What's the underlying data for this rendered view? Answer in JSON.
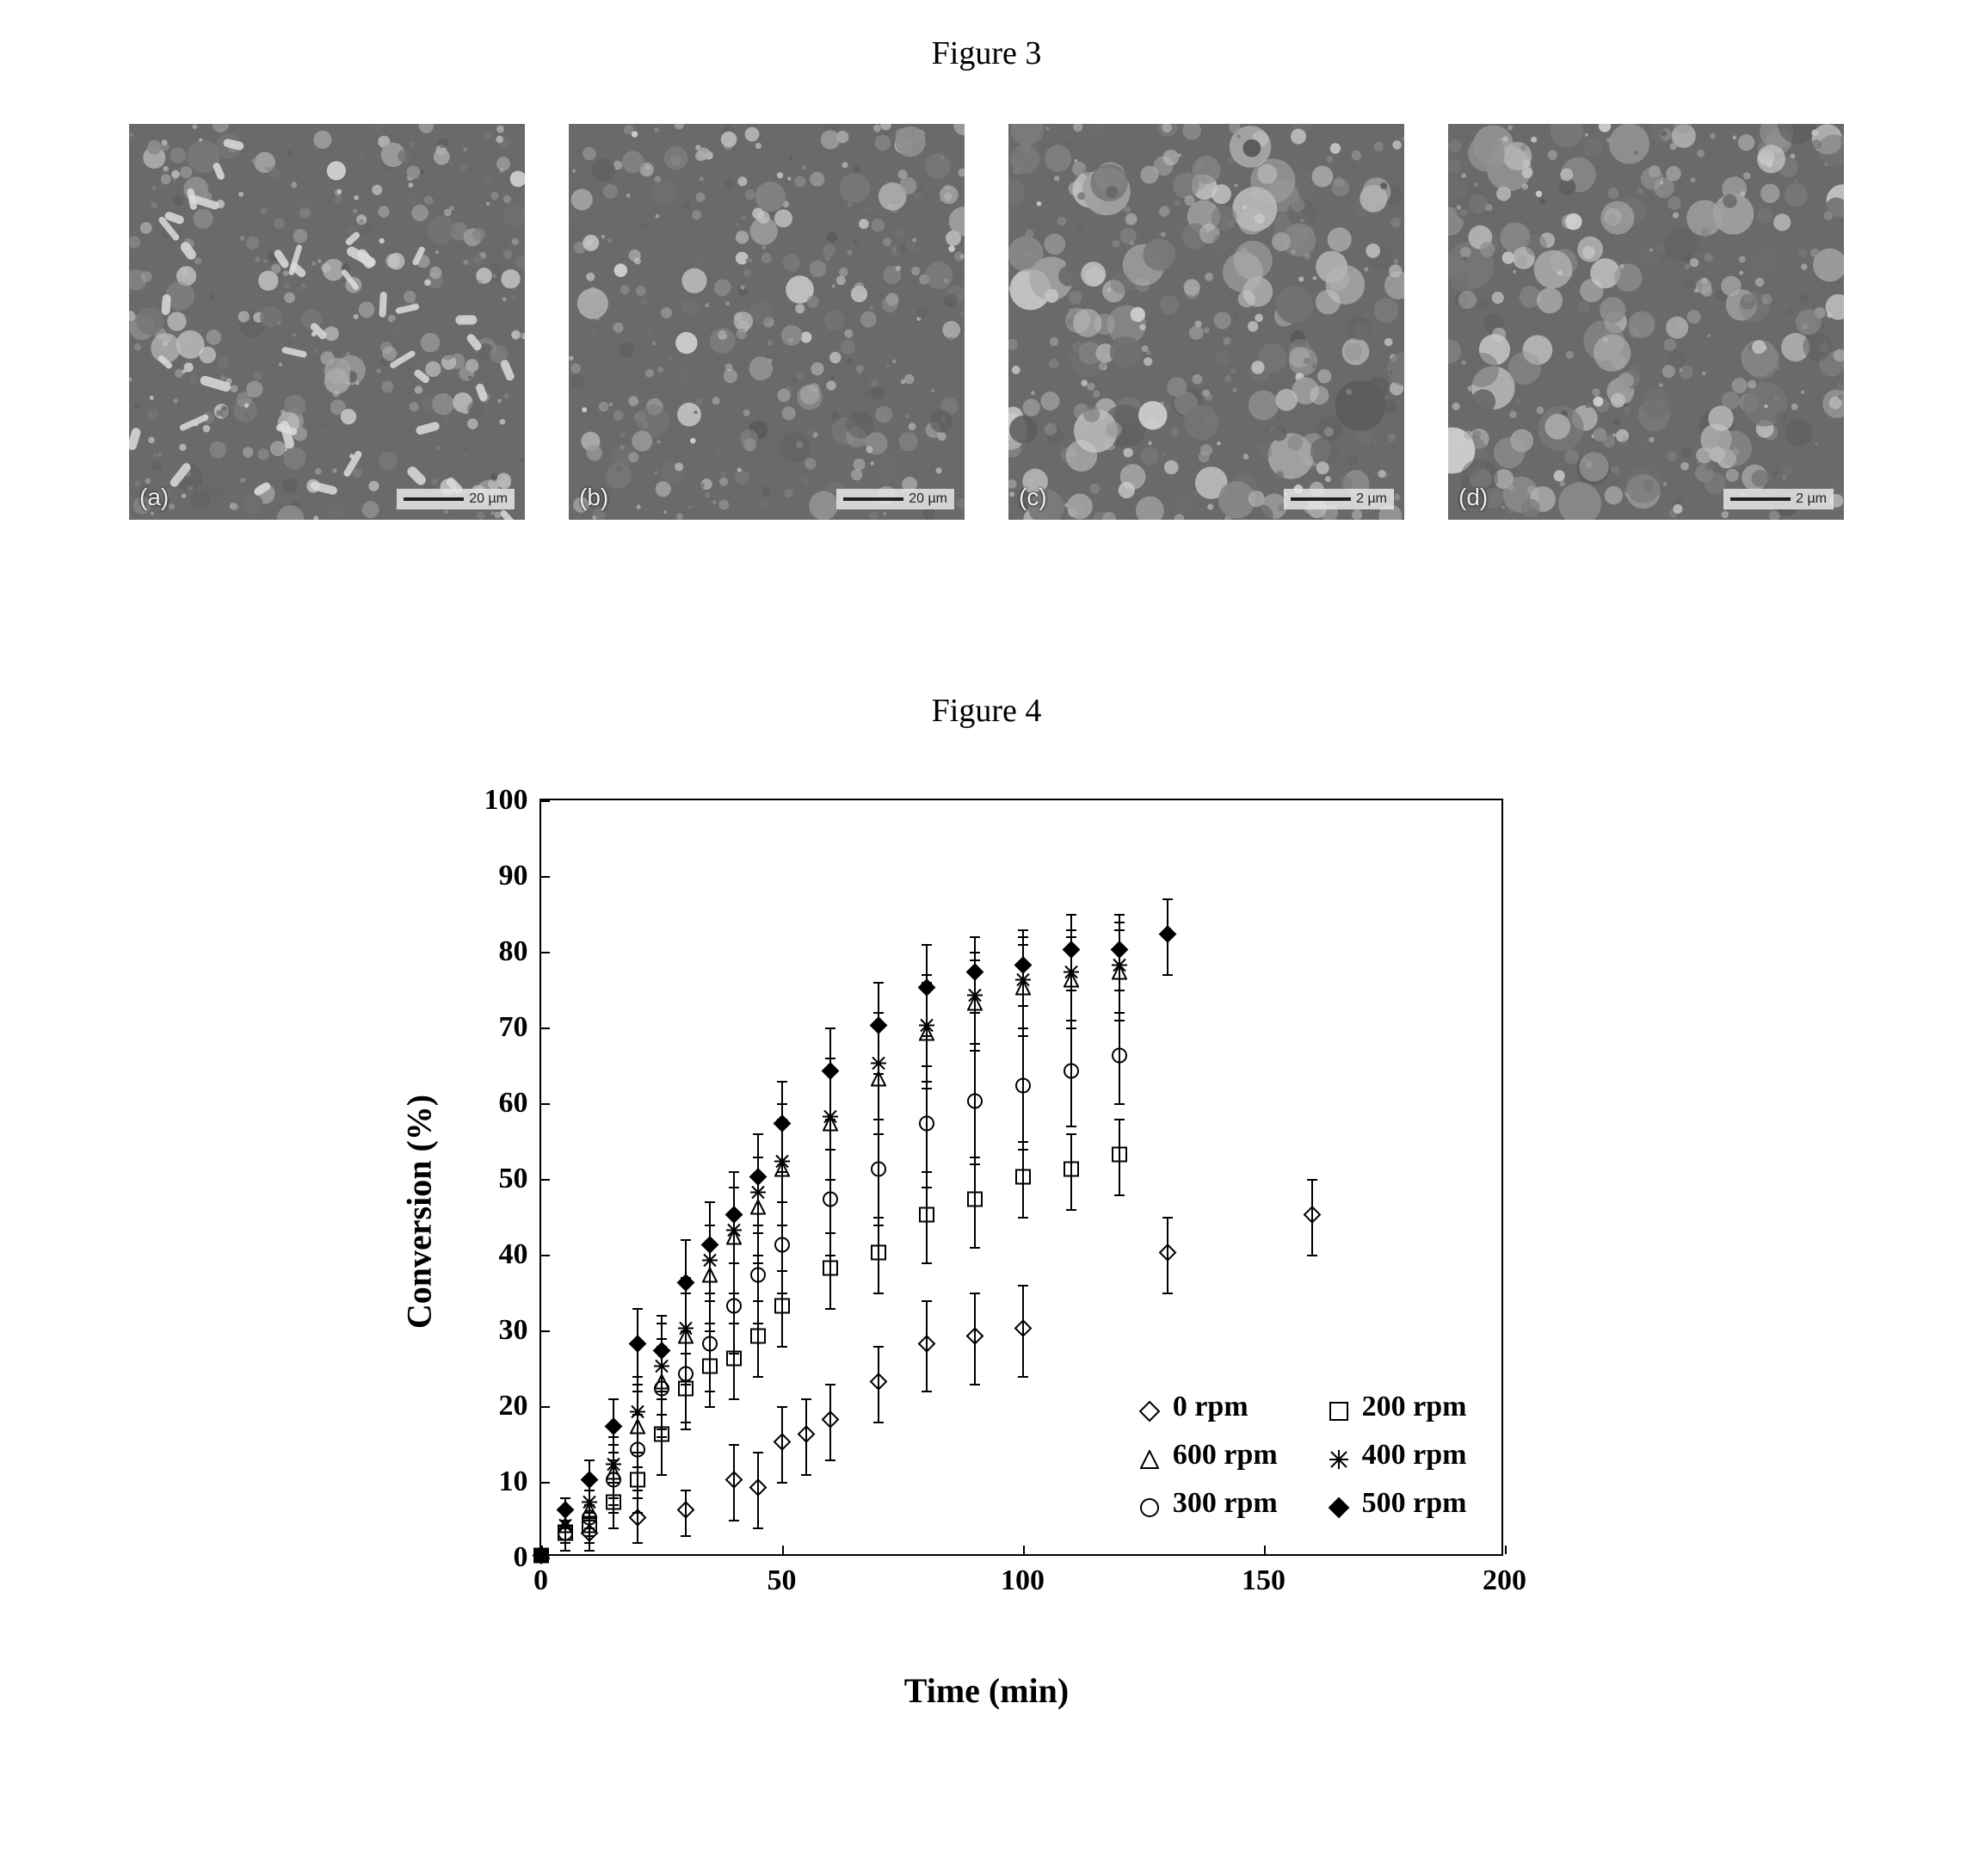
{
  "figure3": {
    "title": "Figure 3",
    "panels": [
      {
        "label": "(a)",
        "scale": "20 µm",
        "seed": 11
      },
      {
        "label": "(b)",
        "scale": "20 µm",
        "seed": 27
      },
      {
        "label": "(c)",
        "scale": "2 µm",
        "seed": 43
      },
      {
        "label": "(d)",
        "scale": "2 µm",
        "seed": 59
      }
    ]
  },
  "figure4": {
    "title": "Figure 4",
    "xlabel": "Time (min)",
    "ylabel": "Conversion (%)",
    "xlim": [
      0,
      200
    ],
    "ylim": [
      0,
      100
    ],
    "xtick_step": 50,
    "ytick_step": 10,
    "axis_fontsize": 40,
    "tick_fontsize": 34,
    "background": "#ffffff",
    "border_color": "#000000",
    "series": [
      {
        "name": "0 rpm",
        "marker": "diamond-open",
        "color": "#000000",
        "fill": "none",
        "data": [
          [
            0,
            0,
            0
          ],
          [
            10,
            3,
            2
          ],
          [
            20,
            5,
            3
          ],
          [
            30,
            6,
            3
          ],
          [
            40,
            10,
            5
          ],
          [
            45,
            9,
            5
          ],
          [
            50,
            15,
            5
          ],
          [
            55,
            16,
            5
          ],
          [
            60,
            18,
            5
          ],
          [
            70,
            23,
            5
          ],
          [
            80,
            28,
            6
          ],
          [
            90,
            29,
            6
          ],
          [
            100,
            30,
            6
          ],
          [
            130,
            40,
            5
          ],
          [
            160,
            45,
            5
          ]
        ]
      },
      {
        "name": "200 rpm",
        "marker": "square-open",
        "color": "#000000",
        "fill": "none",
        "data": [
          [
            0,
            0,
            0
          ],
          [
            5,
            3,
            2
          ],
          [
            10,
            4,
            2
          ],
          [
            15,
            7,
            3
          ],
          [
            20,
            10,
            4
          ],
          [
            25,
            16,
            5
          ],
          [
            30,
            22,
            5
          ],
          [
            35,
            25,
            5
          ],
          [
            40,
            26,
            5
          ],
          [
            45,
            29,
            5
          ],
          [
            50,
            33,
            5
          ],
          [
            60,
            38,
            5
          ],
          [
            70,
            40,
            5
          ],
          [
            80,
            45,
            6
          ],
          [
            90,
            47,
            6
          ],
          [
            100,
            50,
            5
          ],
          [
            110,
            51,
            5
          ],
          [
            120,
            53,
            5
          ]
        ]
      },
      {
        "name": "300 rpm",
        "marker": "circle-open",
        "color": "#000000",
        "fill": "none",
        "data": [
          [
            0,
            0,
            0
          ],
          [
            5,
            3,
            2
          ],
          [
            10,
            5,
            2
          ],
          [
            15,
            10,
            4
          ],
          [
            20,
            14,
            5
          ],
          [
            25,
            22,
            6
          ],
          [
            30,
            24,
            6
          ],
          [
            35,
            28,
            6
          ],
          [
            40,
            33,
            6
          ],
          [
            45,
            37,
            6
          ],
          [
            50,
            41,
            6
          ],
          [
            60,
            47,
            7
          ],
          [
            70,
            51,
            7
          ],
          [
            80,
            57,
            8
          ],
          [
            90,
            60,
            8
          ],
          [
            100,
            62,
            8
          ],
          [
            110,
            64,
            7
          ],
          [
            120,
            66,
            6
          ]
        ]
      },
      {
        "name": "400 rpm",
        "marker": "asterisk",
        "color": "#000000",
        "fill": "#000000",
        "data": [
          [
            0,
            0,
            0
          ],
          [
            5,
            4,
            2
          ],
          [
            10,
            7,
            3
          ],
          [
            15,
            12,
            4
          ],
          [
            20,
            19,
            5
          ],
          [
            25,
            25,
            6
          ],
          [
            30,
            30,
            7
          ],
          [
            35,
            39,
            8
          ],
          [
            40,
            43,
            8
          ],
          [
            45,
            48,
            8
          ],
          [
            50,
            52,
            8
          ],
          [
            60,
            58,
            8
          ],
          [
            70,
            65,
            7
          ],
          [
            80,
            70,
            7
          ],
          [
            90,
            74,
            6
          ],
          [
            100,
            76,
            6
          ],
          [
            110,
            77,
            6
          ],
          [
            120,
            78,
            6
          ]
        ]
      },
      {
        "name": "500 rpm",
        "marker": "diamond-filled",
        "color": "#000000",
        "fill": "#000000",
        "data": [
          [
            0,
            0,
            0
          ],
          [
            5,
            6,
            2
          ],
          [
            10,
            10,
            3
          ],
          [
            15,
            17,
            4
          ],
          [
            20,
            28,
            5
          ],
          [
            25,
            27,
            5
          ],
          [
            30,
            36,
            6
          ],
          [
            35,
            41,
            6
          ],
          [
            40,
            45,
            6
          ],
          [
            45,
            50,
            6
          ],
          [
            50,
            57,
            6
          ],
          [
            60,
            64,
            6
          ],
          [
            70,
            70,
            6
          ],
          [
            80,
            75,
            6
          ],
          [
            90,
            77,
            5
          ],
          [
            100,
            78,
            5
          ],
          [
            110,
            80,
            5
          ],
          [
            120,
            80,
            5
          ],
          [
            130,
            82,
            5
          ]
        ]
      },
      {
        "name": "600 rpm",
        "marker": "triangle-open",
        "color": "#000000",
        "fill": "none",
        "data": [
          [
            0,
            0,
            0
          ],
          [
            5,
            4,
            2
          ],
          [
            10,
            6,
            3
          ],
          [
            15,
            11,
            4
          ],
          [
            20,
            17,
            5
          ],
          [
            25,
            23,
            6
          ],
          [
            30,
            29,
            6
          ],
          [
            35,
            37,
            7
          ],
          [
            40,
            42,
            7
          ],
          [
            45,
            46,
            7
          ],
          [
            50,
            51,
            7
          ],
          [
            60,
            57,
            7
          ],
          [
            70,
            63,
            7
          ],
          [
            80,
            69,
            7
          ],
          [
            90,
            73,
            6
          ],
          [
            100,
            75,
            6
          ],
          [
            110,
            76,
            6
          ],
          [
            120,
            77,
            6
          ]
        ]
      }
    ],
    "legend_layout": [
      [
        "0 rpm",
        "200 rpm"
      ],
      [
        "600 rpm",
        "400 rpm"
      ],
      [
        "300 rpm",
        "500 rpm"
      ]
    ]
  }
}
